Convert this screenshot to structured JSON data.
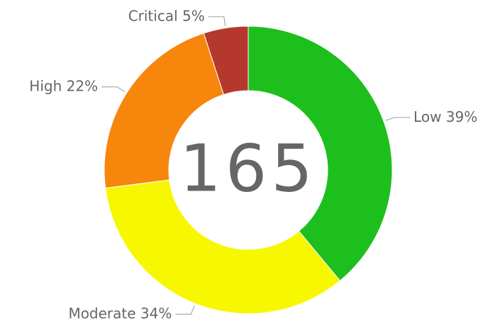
{
  "chart_data": {
    "type": "donut",
    "categories": [
      "Low",
      "Moderate",
      "High",
      "Critical"
    ],
    "values": [
      39,
      34,
      22,
      5
    ],
    "value_labels": [
      "39%",
      "34%",
      "22%",
      "5%"
    ],
    "colors": [
      "#1dbf1d",
      "#f7f700",
      "#f7860c",
      "#b5382d"
    ],
    "total": 165
  }
}
